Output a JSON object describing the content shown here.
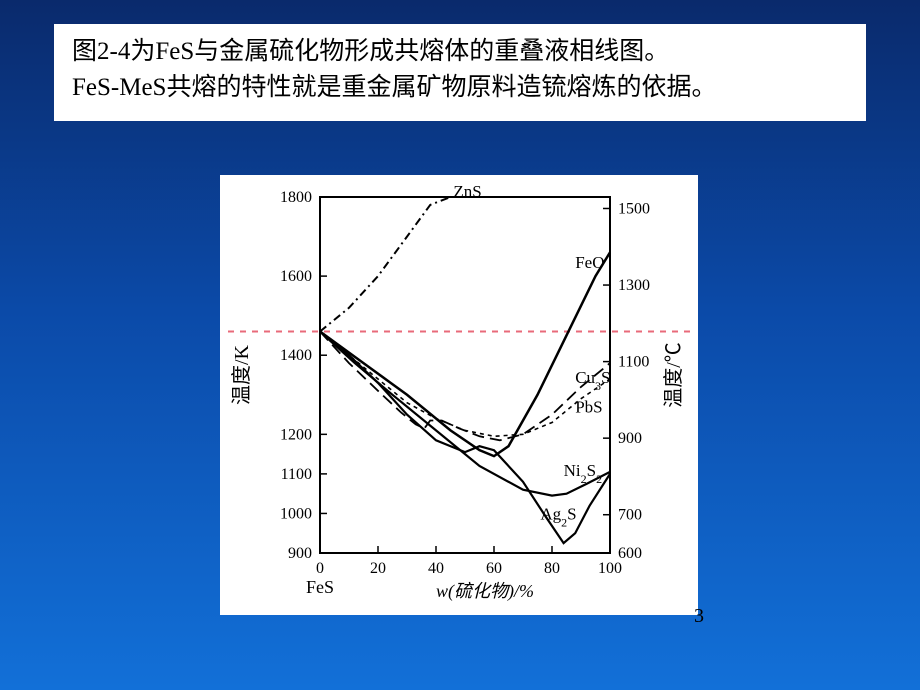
{
  "title": {
    "line1": "图2-4为FeS与金属硫化物形成共熔体的重叠液相线图。",
    "line2": "FeS-MeS共熔的特性就是重金属矿物原料造锍熔炼的依据。"
  },
  "page_number": "3",
  "chart": {
    "type": "line",
    "background_color": "#ffffff",
    "border_color": "#000000",
    "x_axis": {
      "label": "w(硫化物)/%",
      "origin_label": "FeS",
      "ticks": [
        0,
        20,
        40,
        60,
        80,
        100
      ],
      "xlim": [
        0,
        100
      ],
      "label_fontsize": 18
    },
    "y_left": {
      "label": "温度/K",
      "ticks": [
        900,
        1000,
        1100,
        1200,
        1400,
        1600,
        1800
      ],
      "ylim": [
        900,
        1800
      ],
      "label_fontsize": 20
    },
    "y_right": {
      "label": "温度/℃",
      "ticks": [
        600,
        700,
        900,
        1100,
        1300,
        1500
      ],
      "ylim": [
        600,
        1530
      ],
      "label_fontsize": 20
    },
    "annotation_dash": {
      "y_k": 1460,
      "color": "#e86a7a",
      "dash": "6,6",
      "width": 2
    },
    "series": [
      {
        "name": "ZnS",
        "stroke": "#000000",
        "width": 2,
        "dash": "8,4,2,4",
        "points": [
          [
            0,
            1460
          ],
          [
            10,
            1520
          ],
          [
            20,
            1600
          ],
          [
            30,
            1700
          ],
          [
            38,
            1780
          ],
          [
            45,
            1800
          ]
        ]
      },
      {
        "name": "FeO",
        "stroke": "#000000",
        "width": 2.5,
        "dash": "",
        "points": [
          [
            0,
            1460
          ],
          [
            15,
            1380
          ],
          [
            30,
            1300
          ],
          [
            45,
            1210
          ],
          [
            55,
            1160
          ],
          [
            60,
            1145
          ],
          [
            65,
            1170
          ],
          [
            75,
            1300
          ],
          [
            85,
            1450
          ],
          [
            95,
            1600
          ],
          [
            100,
            1660
          ]
        ]
      },
      {
        "name": "Cu3S",
        "stroke": "#000000",
        "width": 1.6,
        "dash": "4,4",
        "points": [
          [
            0,
            1460
          ],
          [
            10,
            1400
          ],
          [
            20,
            1340
          ],
          [
            30,
            1280
          ],
          [
            40,
            1240
          ],
          [
            50,
            1210
          ],
          [
            60,
            1195
          ],
          [
            70,
            1200
          ],
          [
            80,
            1230
          ],
          [
            90,
            1290
          ],
          [
            100,
            1340
          ]
        ]
      },
      {
        "name": "PbS",
        "stroke": "#000000",
        "width": 1.8,
        "dash": "12,6",
        "points": [
          [
            0,
            1460
          ],
          [
            10,
            1380
          ],
          [
            20,
            1310
          ],
          [
            28,
            1255
          ],
          [
            33,
            1225
          ],
          [
            36,
            1215
          ],
          [
            38,
            1235
          ],
          [
            42,
            1235
          ],
          [
            48,
            1215
          ],
          [
            55,
            1195
          ],
          [
            62,
            1185
          ],
          [
            70,
            1200
          ],
          [
            80,
            1250
          ],
          [
            90,
            1320
          ],
          [
            100,
            1380
          ]
        ]
      },
      {
        "name": "Ni2S2",
        "stroke": "#000000",
        "width": 2.2,
        "dash": "",
        "points": [
          [
            0,
            1460
          ],
          [
            12,
            1380
          ],
          [
            25,
            1300
          ],
          [
            40,
            1210
          ],
          [
            55,
            1120
          ],
          [
            70,
            1060
          ],
          [
            80,
            1045
          ],
          [
            85,
            1050
          ],
          [
            92,
            1075
          ],
          [
            100,
            1105
          ]
        ]
      },
      {
        "name": "Ag2S",
        "stroke": "#000000",
        "width": 2.2,
        "dash": "",
        "points": [
          [
            0,
            1460
          ],
          [
            10,
            1400
          ],
          [
            20,
            1330
          ],
          [
            30,
            1250
          ],
          [
            40,
            1185
          ],
          [
            50,
            1155
          ],
          [
            55,
            1170
          ],
          [
            60,
            1160
          ],
          [
            70,
            1080
          ],
          [
            78,
            990
          ],
          [
            84,
            925
          ],
          [
            88,
            950
          ],
          [
            93,
            1020
          ],
          [
            100,
            1100
          ]
        ]
      }
    ],
    "series_labels": [
      {
        "text": "ZnS",
        "x": 46,
        "y_k": 1800,
        "anchor": "start"
      },
      {
        "text": "FeO",
        "x": 88,
        "y_k": 1620,
        "anchor": "start"
      },
      {
        "text": "Cu",
        "sub": "3",
        "suf": "S",
        "x": 88,
        "y_k": 1330,
        "anchor": "start"
      },
      {
        "text": "PbS",
        "x": 88,
        "y_k": 1255,
        "anchor": "start"
      },
      {
        "text": "Ni",
        "sub": "2",
        "suf": "S",
        "sub2": "2",
        "x": 84,
        "y_k": 1095,
        "anchor": "start"
      },
      {
        "text": "Ag",
        "sub": "2",
        "suf": "S",
        "x": 76,
        "y_k": 985,
        "anchor": "start"
      }
    ]
  }
}
